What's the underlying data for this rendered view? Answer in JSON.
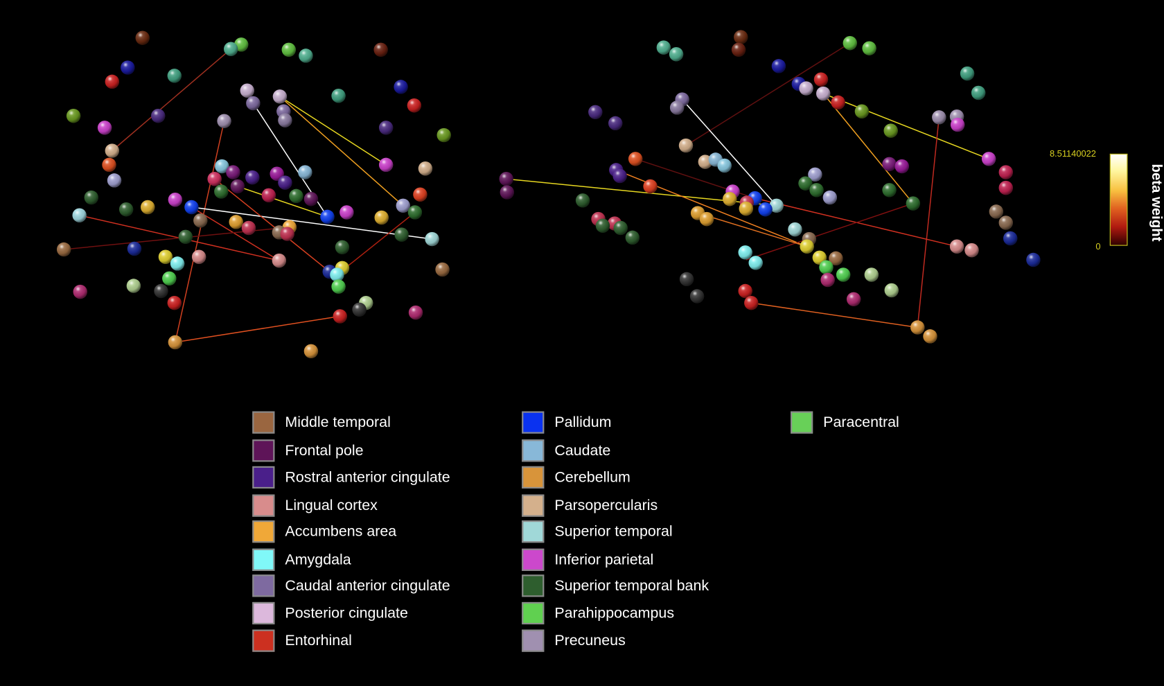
{
  "colorbar": {
    "max_label": "8.51140022",
    "min_label": "0",
    "title": "beta weight",
    "max": 8.51140022,
    "min": 0
  },
  "legend": [
    {
      "label": "Middle temporal",
      "color": "#9a6640"
    },
    {
      "label": "Frontal pole",
      "color": "#5e1458"
    },
    {
      "label": "Rostral anterior cingulate",
      "color": "#4a1f8a"
    },
    {
      "label": "Lingual cortex",
      "color": "#d88c8c"
    },
    {
      "label": "Accumbens area",
      "color": "#f0a838"
    },
    {
      "label": "Amygdala",
      "color": "#80f8f8"
    },
    {
      "label": "Caudal anterior cingulate",
      "color": "#7e6aa0"
    },
    {
      "label": "Posterior cingulate",
      "color": "#dcb8dc"
    },
    {
      "label": "Entorhinal",
      "color": "#cc3020"
    },
    {
      "label": "Pallidum",
      "color": "#0a32f0"
    },
    {
      "label": "Caudate",
      "color": "#88b8d8"
    },
    {
      "label": "Cerebellum",
      "color": "#d8943a"
    },
    {
      "label": "Parsopercularis",
      "color": "#d4b08c"
    },
    {
      "label": "Superior temporal",
      "color": "#a0d8d8"
    },
    {
      "label": "Inferior parietal",
      "color": "#cc48cc"
    },
    {
      "label": "Superior temporal bank",
      "color": "#2e5e2e"
    },
    {
      "label": "Parahippocampus",
      "color": "#60d050"
    },
    {
      "label": "Precuneus",
      "color": "#a090b0"
    },
    {
      "label": "Paracentral",
      "color": "#68d058"
    }
  ]
}
